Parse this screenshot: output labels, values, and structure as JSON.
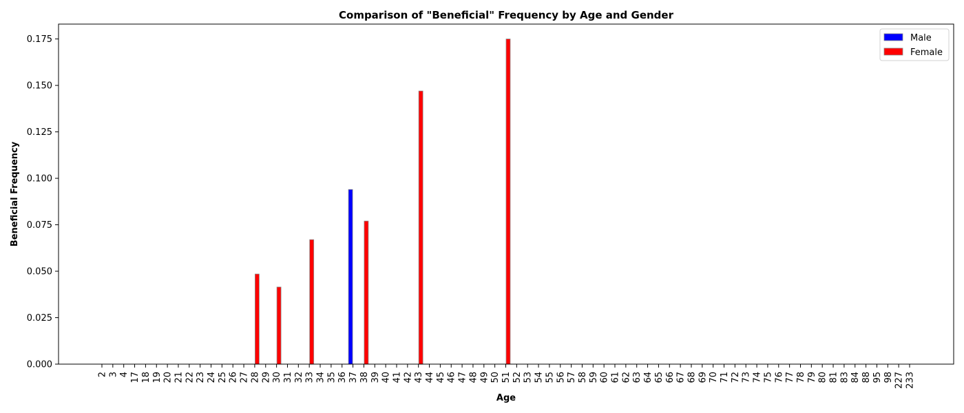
{
  "chart_data": {
    "type": "bar",
    "title": "Comparison of \"Beneficial\" Frequency by Age and Gender",
    "xlabel": "Age",
    "ylabel": "Beneficial Frequency",
    "ylim": [
      0,
      0.183
    ],
    "yticks": [
      "0.000",
      "0.025",
      "0.050",
      "0.075",
      "0.100",
      "0.125",
      "0.150",
      "0.175"
    ],
    "ytick_values": [
      0,
      0.025,
      0.05,
      0.075,
      0.1,
      0.125,
      0.15,
      0.175
    ],
    "grid": false,
    "legend_position": "top-right",
    "categories": [
      "2",
      "3",
      "4",
      "17",
      "18",
      "19",
      "20",
      "21",
      "22",
      "23",
      "24",
      "25",
      "26",
      "27",
      "28",
      "29",
      "30",
      "31",
      "32",
      "33",
      "34",
      "35",
      "36",
      "37",
      "38",
      "39",
      "40",
      "41",
      "42",
      "43",
      "44",
      "45",
      "46",
      "47",
      "48",
      "49",
      "50",
      "51",
      "52",
      "53",
      "54",
      "55",
      "56",
      "57",
      "58",
      "59",
      "60",
      "61",
      "62",
      "63",
      "64",
      "65",
      "66",
      "67",
      "68",
      "69",
      "70",
      "71",
      "72",
      "73",
      "74",
      "75",
      "76",
      "77",
      "78",
      "79",
      "80",
      "81",
      "83",
      "84",
      "88",
      "95",
      "98",
      "227",
      "233"
    ],
    "series": [
      {
        "name": "Male",
        "color": "#0000ff",
        "values": [
          0,
          0,
          0,
          0,
          0,
          0,
          0,
          0,
          0,
          0,
          0,
          0,
          0,
          0,
          0,
          0,
          0,
          0,
          0,
          0,
          0,
          0,
          0,
          0.094,
          0,
          0,
          0,
          0,
          0,
          0,
          0,
          0,
          0,
          0,
          0,
          0,
          0,
          0,
          0,
          0,
          0,
          0,
          0,
          0,
          0,
          0,
          0,
          0,
          0,
          0,
          0,
          0,
          0,
          0,
          0,
          0,
          0,
          0,
          0,
          0,
          0,
          0,
          0,
          0,
          0,
          0,
          0,
          0,
          0,
          0,
          0,
          0,
          0,
          0,
          0
        ]
      },
      {
        "name": "Female",
        "color": "#ff0000",
        "values": [
          0,
          0,
          0,
          0,
          0,
          0,
          0,
          0,
          0,
          0,
          0,
          0,
          0,
          0,
          0.0485,
          0,
          0.0415,
          0,
          0,
          0.067,
          0,
          0,
          0,
          0,
          0.077,
          0,
          0,
          0,
          0,
          0.147,
          0,
          0,
          0,
          0,
          0,
          0,
          0,
          0.175,
          0,
          0,
          0,
          0,
          0,
          0,
          0,
          0,
          0,
          0,
          0,
          0,
          0,
          0,
          0,
          0,
          0,
          0,
          0,
          0,
          0,
          0,
          0,
          0,
          0,
          0,
          0,
          0,
          0,
          0,
          0,
          0,
          0,
          0,
          0,
          0,
          0
        ]
      }
    ]
  }
}
